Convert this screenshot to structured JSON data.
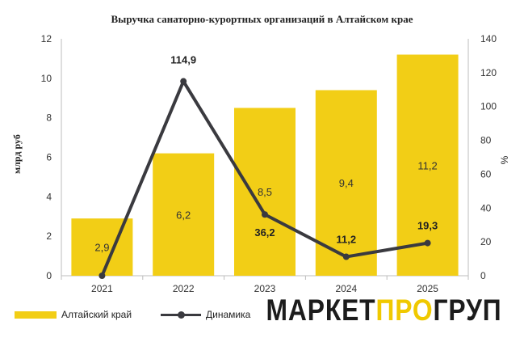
{
  "chart_data": {
    "type": "bar",
    "title": "Выручка санаторно-курортных организаций в Алтайском крае",
    "categories": [
      "2021",
      "2022",
      "2023",
      "2024",
      "2025"
    ],
    "ylabel": "млрд руб",
    "y2label": "%",
    "ylim": [
      0,
      12
    ],
    "y2lim": [
      0,
      140
    ],
    "yticks": [
      0,
      2,
      4,
      6,
      8,
      10,
      12
    ],
    "y2ticks": [
      0,
      20,
      40,
      60,
      80,
      100,
      120,
      140
    ],
    "grid": false,
    "legend_position": "bottom-left",
    "series": [
      {
        "name": "Алтайский край",
        "type": "bar",
        "axis": "left",
        "color": "#F2CE16",
        "values": [
          2.9,
          6.2,
          8.5,
          9.4,
          11.2
        ],
        "labels": [
          "2,9",
          "6,2",
          "8,5",
          "9,4",
          "11,2"
        ]
      },
      {
        "name": "Динамика",
        "type": "line",
        "axis": "right",
        "color": "#3A3A3F",
        "values": [
          0,
          114.9,
          36.2,
          11.2,
          19.3
        ],
        "labels": [
          "",
          "114,9",
          "36,2",
          "11,2",
          "19,3"
        ]
      }
    ]
  },
  "logo": {
    "part1": "МАРКЕТ",
    "part2": "ПРО",
    "part3": "ГРУП"
  }
}
